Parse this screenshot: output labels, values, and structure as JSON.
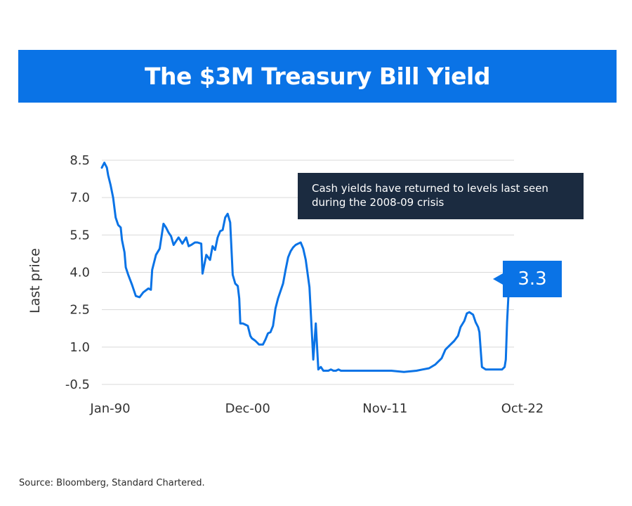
{
  "title": "The $3M Treasury Bill Yield",
  "source": "Source: Bloomberg, Standard Chartered.",
  "annotation": "Cash yields have returned to levels last seen during the 2008-09 crisis",
  "last_value_label": "3.3",
  "colors": {
    "accent": "#0a73e6",
    "annotation_bg": "#1b2b40",
    "grid": "#d9d9d9",
    "line": "#0a73e6"
  },
  "chart_data": {
    "type": "line",
    "title": "The $3M Treasury Bill Yield",
    "xlabel": "",
    "ylabel": "Last price",
    "ylim": [
      -0.5,
      8.5
    ],
    "yticks": [
      8.5,
      7.0,
      5.5,
      4.0,
      2.5,
      1.0,
      -0.5
    ],
    "ytick_labels": [
      "8.5",
      "7.0",
      "5.5",
      "4.0",
      "2.5",
      "1.0",
      "-0.5"
    ],
    "xlim": [
      1990.0,
      2022.75
    ],
    "xticks": [
      1990.0,
      2000.92,
      2011.83,
      2022.75
    ],
    "xtick_labels": [
      "Jan-90",
      "Dec-00",
      "Nov-11",
      "Oct-22"
    ],
    "grid": true,
    "series": [
      {
        "name": "3M Treasury Bill Yield",
        "x": [
          1990.0,
          1990.2,
          1990.4,
          1990.5,
          1990.7,
          1990.9,
          1991.1,
          1991.3,
          1991.5,
          1991.6,
          1991.8,
          1991.9,
          1992.1,
          1992.4,
          1992.7,
          1993.0,
          1993.3,
          1993.7,
          1993.9,
          1994.0,
          1994.3,
          1994.6,
          1994.9,
          1995.1,
          1995.3,
          1995.5,
          1995.7,
          1995.9,
          1996.1,
          1996.4,
          1996.7,
          1996.9,
          1997.1,
          1997.4,
          1997.6,
          1997.9,
          1998.0,
          1998.3,
          1998.6,
          1998.8,
          1999.0,
          1999.2,
          1999.4,
          1999.6,
          1999.8,
          2000.0,
          2000.2,
          2000.4,
          2000.6,
          2000.8,
          2000.92,
          2001.0,
          2001.2,
          2001.4,
          2001.6,
          2001.8,
          2001.92,
          2002.2,
          2002.5,
          2002.8,
          2003.0,
          2003.2,
          2003.4,
          2003.6,
          2003.8,
          2004.0,
          2004.2,
          2004.4,
          2004.6,
          2004.8,
          2005.0,
          2005.2,
          2005.4,
          2005.6,
          2005.8,
          2006.0,
          2006.2,
          2006.5,
          2006.8,
          2007.0,
          2007.2,
          2007.4,
          2007.6,
          2007.8,
          2008.0,
          2008.2,
          2008.4,
          2008.6,
          2008.8,
          2009.0,
          2009.3,
          2009.6,
          2010.0,
          2010.5,
          2011.0,
          2011.5,
          2012.0,
          2013.0,
          2014.0,
          2015.0,
          2015.5,
          2016.0,
          2016.5,
          2017.0,
          2017.3,
          2017.6,
          2018.0,
          2018.3,
          2018.5,
          2018.8,
          2019.0,
          2019.2,
          2019.5,
          2019.7,
          2019.9,
          2020.0,
          2020.2,
          2020.5,
          2021.0,
          2021.5,
          2021.8,
          2022.0,
          2022.1,
          2022.2,
          2022.3,
          2022.5,
          2022.75
        ],
        "y": [
          8.2,
          8.4,
          8.2,
          7.9,
          7.5,
          7.0,
          6.2,
          5.9,
          5.8,
          5.3,
          4.8,
          4.2,
          3.9,
          3.5,
          3.05,
          3.0,
          3.2,
          3.35,
          3.3,
          4.1,
          4.7,
          4.95,
          5.95,
          5.8,
          5.6,
          5.45,
          5.1,
          5.25,
          5.4,
          5.15,
          5.4,
          5.05,
          5.1,
          5.2,
          5.2,
          5.15,
          3.95,
          4.7,
          4.5,
          5.05,
          4.9,
          5.4,
          5.65,
          5.7,
          6.2,
          6.35,
          6.0,
          3.9,
          3.55,
          3.45,
          2.95,
          1.95,
          1.95,
          1.9,
          1.85,
          1.45,
          1.35,
          1.25,
          1.1,
          1.1,
          1.3,
          1.55,
          1.6,
          1.85,
          2.55,
          2.95,
          3.25,
          3.55,
          4.1,
          4.6,
          4.85,
          5.0,
          5.1,
          5.15,
          5.2,
          4.95,
          4.5,
          3.4,
          0.5,
          1.95,
          0.1,
          0.2,
          0.05,
          0.05,
          0.05,
          0.1,
          0.05,
          0.05,
          0.1,
          0.05,
          0.05,
          0.05,
          0.05,
          0.05,
          0.05,
          0.05,
          0.05,
          0.05,
          0.0,
          0.05,
          0.1,
          0.15,
          0.3,
          0.55,
          0.9,
          1.05,
          1.25,
          1.45,
          1.8,
          2.05,
          2.35,
          2.4,
          2.3,
          2.0,
          1.8,
          1.6,
          0.2,
          0.1,
          0.1,
          0.1,
          0.1,
          0.2,
          0.5,
          2.0,
          3.0,
          3.5,
          3.3
        ]
      }
    ]
  }
}
